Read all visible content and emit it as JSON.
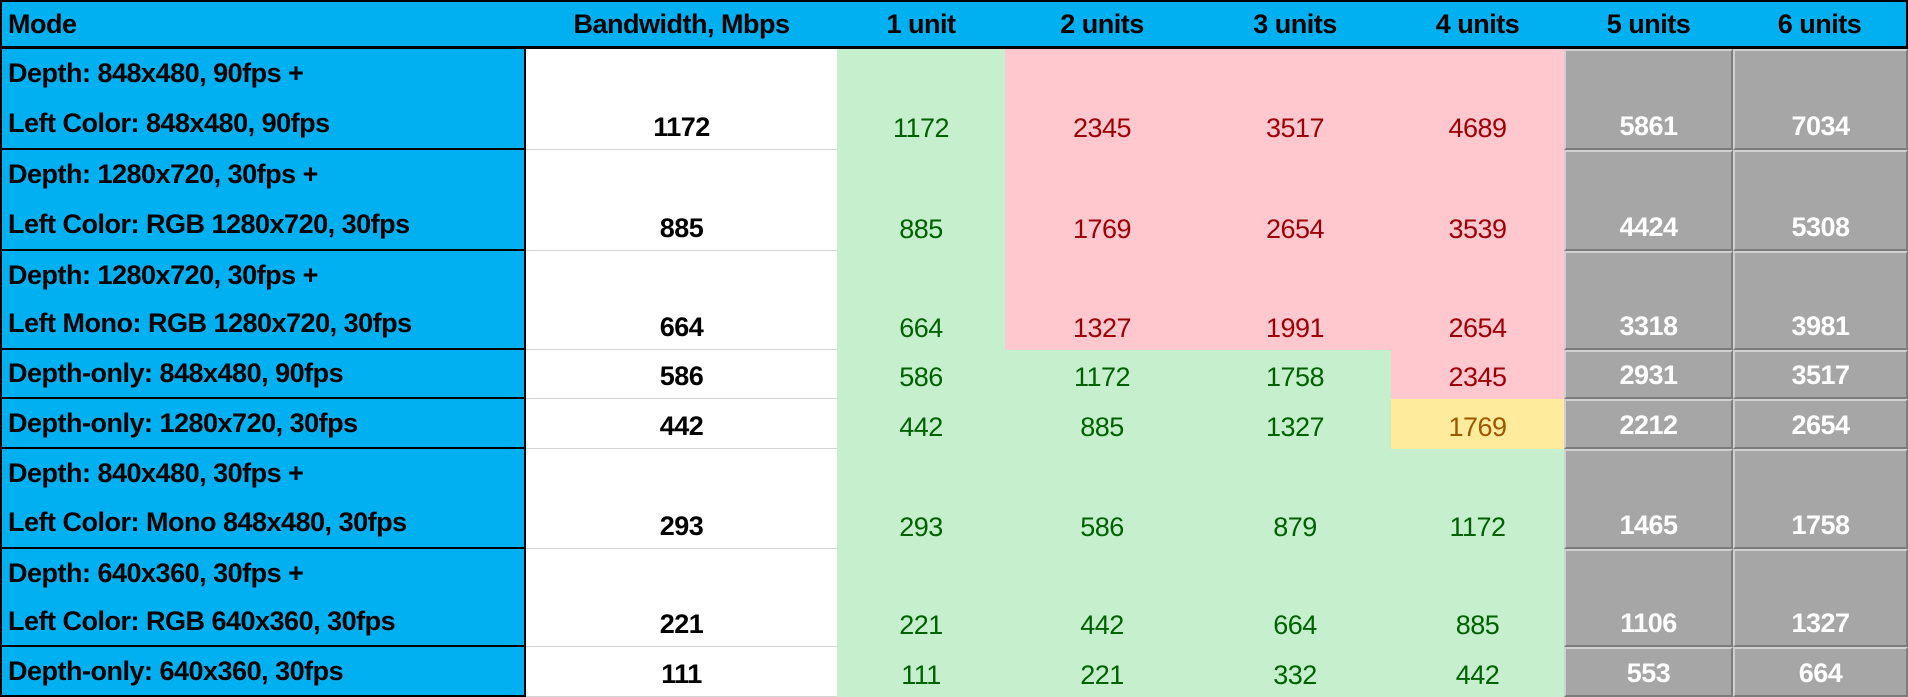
{
  "headers": [
    "Mode",
    "Bandwidth, Mbps",
    "1 unit",
    "2 units",
    "3 units",
    "4 units",
    "5 units",
    "6 units"
  ],
  "colors": {
    "header": "#00B0F0",
    "ok_fill": "#C6EFCE",
    "ok_text": "#006100",
    "bad_fill": "#FFC7CE",
    "bad_text": "#9C0006",
    "warn_fill": "#FFEB9C",
    "warn_text": "#9C5700",
    "gray_fill": "#A6A6A6"
  },
  "rows": [
    {
      "mode": [
        "Depth: 848x480, 90fps +",
        "Left Color: 848x480, 90fps"
      ],
      "bandwidth": "1172",
      "units": [
        "1172",
        "2345",
        "3517",
        "4689",
        "5861",
        "7034"
      ],
      "status": [
        "ok",
        "bad",
        "bad",
        "bad",
        "gray",
        "gray"
      ]
    },
    {
      "mode": [
        "Depth: 1280x720, 30fps +",
        "Left Color: RGB 1280x720, 30fps"
      ],
      "bandwidth": "885",
      "units": [
        "885",
        "1769",
        "2654",
        "3539",
        "4424",
        "5308"
      ],
      "status": [
        "ok",
        "bad",
        "bad",
        "bad",
        "gray",
        "gray"
      ]
    },
    {
      "mode": [
        "Depth: 1280x720, 30fps +",
        "Left Mono: RGB 1280x720, 30fps"
      ],
      "bandwidth": "664",
      "units": [
        "664",
        "1327",
        "1991",
        "2654",
        "3318",
        "3981"
      ],
      "status": [
        "ok",
        "bad",
        "bad",
        "bad",
        "gray",
        "gray"
      ]
    },
    {
      "mode": [
        "Depth-only: 848x480, 90fps"
      ],
      "bandwidth": "586",
      "units": [
        "586",
        "1172",
        "1758",
        "2345",
        "2931",
        "3517"
      ],
      "status": [
        "ok",
        "ok",
        "ok",
        "bad",
        "gray",
        "gray"
      ]
    },
    {
      "mode": [
        "Depth-only: 1280x720, 30fps"
      ],
      "bandwidth": "442",
      "units": [
        "442",
        "885",
        "1327",
        "1769",
        "2212",
        "2654"
      ],
      "status": [
        "ok",
        "ok",
        "ok",
        "warn",
        "gray",
        "gray"
      ]
    },
    {
      "mode": [
        "Depth: 840x480, 30fps +",
        "Left Color: Mono 848x480, 30fps"
      ],
      "bandwidth": "293",
      "units": [
        "293",
        "586",
        "879",
        "1172",
        "1465",
        "1758"
      ],
      "status": [
        "ok",
        "ok",
        "ok",
        "ok",
        "gray",
        "gray"
      ]
    },
    {
      "mode": [
        "Depth: 640x360, 30fps +",
        "Left Color: RGB 640x360, 30fps"
      ],
      "bandwidth": "221",
      "units": [
        "221",
        "442",
        "664",
        "885",
        "1106",
        "1327"
      ],
      "status": [
        "ok",
        "ok",
        "ok",
        "ok",
        "gray",
        "gray"
      ]
    },
    {
      "mode": [
        "Depth-only: 640x360, 30fps"
      ],
      "bandwidth": "111",
      "units": [
        "111",
        "221",
        "332",
        "442",
        "553",
        "664"
      ],
      "status": [
        "ok",
        "ok",
        "ok",
        "ok",
        "gray",
        "gray"
      ]
    }
  ]
}
